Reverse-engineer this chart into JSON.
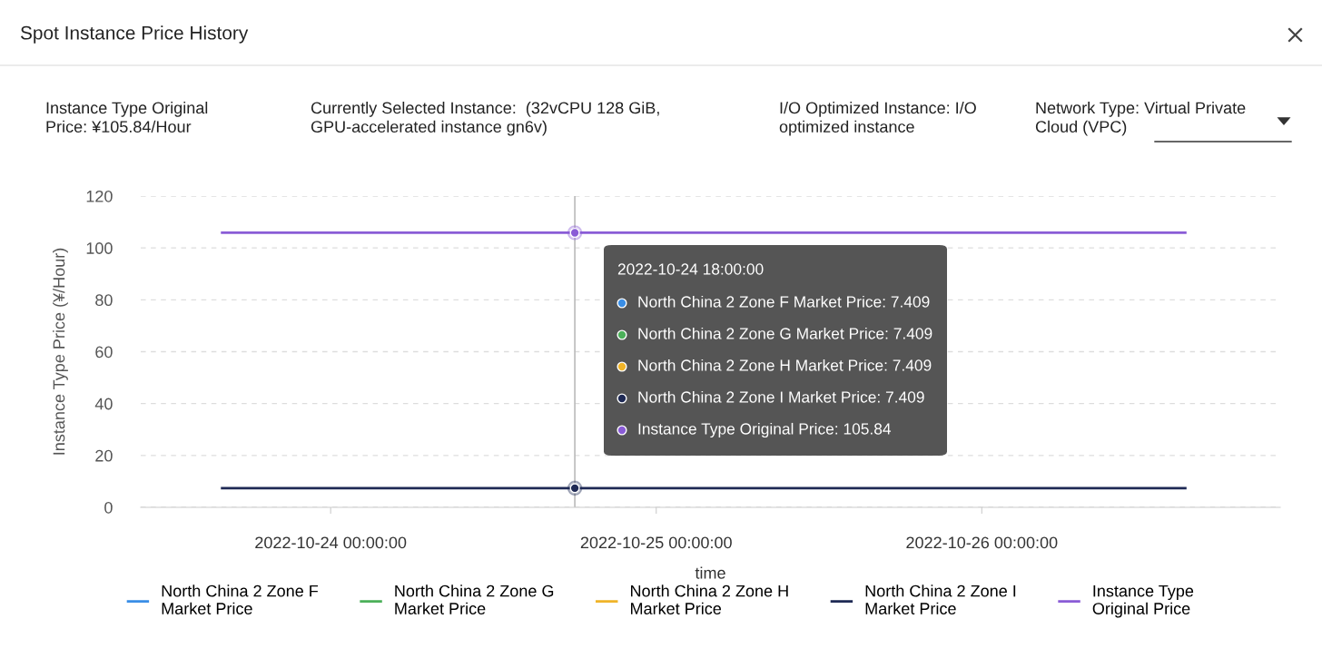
{
  "chart_data": {
    "type": "line",
    "title": "Spot Instance Price History",
    "xlabel": "time",
    "ylabel": "Instance Type Price (¥/Hour)",
    "x": [
      "2022-10-23T16:00",
      "2022-10-24T18:00",
      "2022-10-26T15:00"
    ],
    "series": [
      {
        "name": "North China 2 Zone F\nMarket Price",
        "color": "#3a8ee6",
        "values": [
          null,
          null,
          null
        ]
      },
      {
        "name": "North China 2 Zone G\nMarket Price",
        "color": "#4cb05a",
        "values": [
          null,
          null,
          null
        ]
      },
      {
        "name": "North China 2 Zone H\nMarket Price",
        "color": "#f0b429",
        "values": [
          null,
          null,
          null
        ]
      },
      {
        "name": "North China 2 Zone I\nMarket Price",
        "color": "#1f2a55",
        "values": [
          7.409,
          7.409,
          7.409
        ]
      },
      {
        "name": "Instance Type\nOriginal Price",
        "color": "#8a5cd6",
        "values": [
          105.84,
          105.84,
          105.84
        ]
      }
    ],
    "xlim": [
      "2022-10-23T10:00",
      "2022-10-26T22:00"
    ],
    "xticks": [
      {
        "value": "2022-10-24T00:00",
        "label": "2022-10-24 00:00:00"
      },
      {
        "value": "2022-10-25T00:00",
        "label": "2022-10-25 00:00:00"
      },
      {
        "value": "2022-10-26T00:00",
        "label": "2022-10-26 00:00:00"
      }
    ],
    "ylim": [
      0,
      120
    ],
    "yticks": [
      0,
      20,
      40,
      60,
      80,
      100,
      120
    ],
    "grid": "y",
    "legend": "bottom",
    "marker": "none",
    "line_style": "solid",
    "ref_lines": [
      {
        "axis": "x",
        "value": "2022-10-24T18:00",
        "color": "#bbbbbb"
      }
    ],
    "annotations": [
      "Instance Type Original\nPrice: ¥105.84/Hour",
      "Currently Selected Instance:  (32vCPU 128 GiB,\nGPU-accelerated instance gn6v)",
      "I/O Optimized Instance: I/O\noptimized instance",
      "Network Type: Virtual Private\nCloud (VPC)",
      "2022-10-24 18:00:00",
      "North China 2 Zone F Market Price: 7.409",
      "North China 2 Zone G Market Price: 7.409",
      "North China 2 Zone H Market Price: 7.409",
      "North China 2 Zone I Market Price: 7.409",
      "Instance Type Original Price: 105.84"
    ]
  }
}
